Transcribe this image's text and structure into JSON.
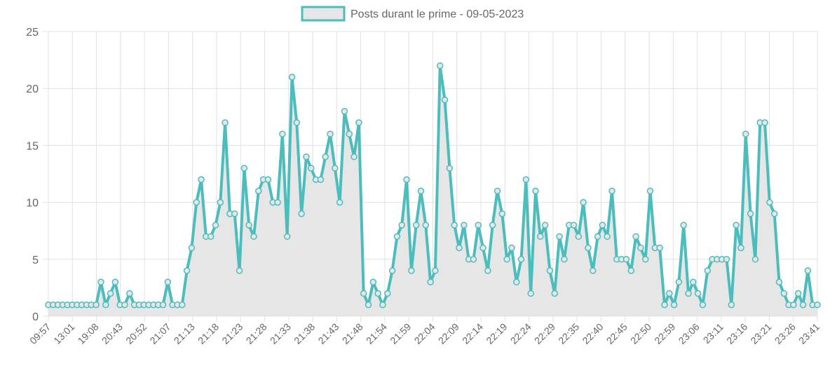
{
  "chart_data": {
    "type": "line",
    "series": [
      {
        "name": "Posts durant le prime - 09-05-2023",
        "color": "#4bbdbd",
        "fill": "#e6e6e6",
        "values": [
          1,
          1,
          1,
          1,
          1,
          1,
          1,
          1,
          1,
          1,
          1,
          3,
          1,
          2,
          3,
          1,
          1,
          2,
          1,
          1,
          1,
          1,
          1,
          1,
          1,
          3,
          1,
          1,
          1,
          4,
          6,
          10,
          12,
          7,
          7,
          8,
          10,
          17,
          9,
          9,
          4,
          13,
          8,
          7,
          11,
          12,
          12,
          10,
          10,
          16,
          7,
          21,
          17,
          9,
          14,
          13,
          12,
          12,
          14,
          16,
          13,
          10,
          18,
          16,
          14,
          17,
          2,
          1,
          3,
          2,
          1,
          2,
          4,
          7,
          8,
          12,
          4,
          8,
          11,
          8,
          3,
          4,
          22,
          19,
          13,
          8,
          6,
          8,
          5,
          5,
          8,
          6,
          4,
          8,
          11,
          9,
          5,
          6,
          3,
          5,
          12,
          2,
          11,
          7,
          8,
          4,
          2,
          7,
          5,
          8,
          8,
          7,
          10,
          6,
          4,
          7,
          8,
          7,
          11,
          5,
          5,
          5,
          4,
          7,
          6,
          5,
          11,
          6,
          6,
          1,
          2,
          1,
          3,
          8,
          2,
          3,
          2,
          1,
          4,
          5,
          5,
          5,
          5,
          1,
          8,
          6,
          16,
          9,
          5,
          17,
          17,
          10,
          9,
          3,
          2,
          1,
          1,
          2,
          1,
          4,
          1,
          1
        ]
      }
    ],
    "x_tick_labels": [
      "09:57",
      "13:01",
      "19:08",
      "20:43",
      "20:52",
      "21:07",
      "21:13",
      "21:18",
      "21:23",
      "21:28",
      "21:33",
      "21:38",
      "21:43",
      "21:48",
      "21:54",
      "21:59",
      "22:04",
      "22:09",
      "22:14",
      "22:19",
      "22:24",
      "22:29",
      "22:35",
      "22:40",
      "22:45",
      "22:50",
      "22:59",
      "23:06",
      "23:11",
      "23:16",
      "23:21",
      "23:26",
      "23:41"
    ],
    "y_ticks": [
      0,
      5,
      10,
      15,
      20,
      25
    ],
    "ylim": [
      0,
      25
    ],
    "grid": true,
    "legend_position": "top-center"
  }
}
